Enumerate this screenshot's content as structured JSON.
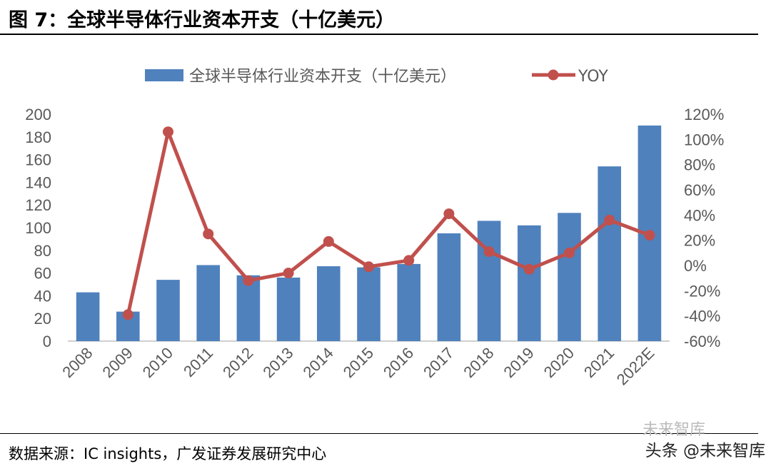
{
  "figure": {
    "title": "图 7：全球半导体行业资本开支（十亿美元）",
    "source": "数据来源：IC insights，广发证券发展研究中心",
    "watermark": "头条 @未来智库",
    "watermark_faint": "未来智库"
  },
  "colors": {
    "bar": "#4f81bd",
    "line": "#c0504d",
    "axis": "#bfbfbf",
    "text": "#595959"
  },
  "chart_data": {
    "type": "bar",
    "title": "全球半导体行业资本开支（十亿美元）",
    "categories": [
      "2008",
      "2009",
      "2010",
      "2011",
      "2012",
      "2013",
      "2014",
      "2015",
      "2016",
      "2017",
      "2018",
      "2019",
      "2020",
      "2021",
      "2022E"
    ],
    "series": [
      {
        "name": "全球半导体行业资本开支（十亿美元）",
        "type": "bar",
        "axis": "left",
        "values": [
          43,
          26,
          54,
          67,
          58,
          56,
          66,
          65,
          68,
          95,
          106,
          102,
          113,
          154,
          190
        ]
      },
      {
        "name": "YOY",
        "type": "line",
        "axis": "right",
        "values": [
          null,
          -39,
          106,
          25,
          -12,
          -6,
          19,
          -1,
          4,
          41,
          11,
          -3,
          10,
          36,
          24
        ]
      }
    ],
    "y_left": {
      "min": 0,
      "max": 200,
      "step": 20,
      "ticks": [
        "0",
        "20",
        "40",
        "60",
        "80",
        "100",
        "120",
        "140",
        "160",
        "180",
        "200"
      ]
    },
    "y_right": {
      "min": -60,
      "max": 120,
      "step": 20,
      "ticks": [
        "-60%",
        "-40%",
        "-20%",
        "0%",
        "20%",
        "40%",
        "60%",
        "80%",
        "100%",
        "120%"
      ]
    },
    "legend": {
      "position": "top-center",
      "bar_label": "全球半导体行业资本开支（十亿美元）",
      "line_label": "YOY"
    },
    "grid": false
  }
}
